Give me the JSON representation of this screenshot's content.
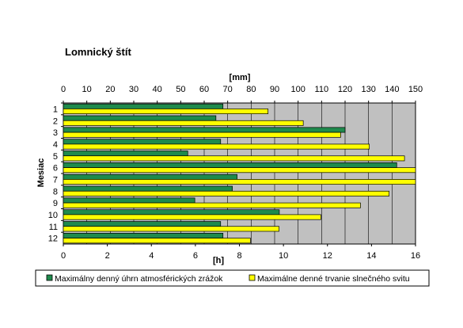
{
  "chart_data": {
    "type": "bar",
    "orientation": "horizontal",
    "title": "Lomnický štít",
    "ylabel": "Mesiac",
    "categories": [
      "1",
      "2",
      "3",
      "4",
      "5",
      "6",
      "7",
      "8",
      "9",
      "10",
      "11",
      "12"
    ],
    "top_axis": {
      "label": "[mm]",
      "range": [
        0,
        150
      ],
      "ticks": [
        "0",
        "10",
        "20",
        "30",
        "40",
        "50",
        "60",
        "70",
        "80",
        "90",
        "100",
        "110",
        "120",
        "130",
        "140",
        "150"
      ]
    },
    "bottom_axis": {
      "label": "[h]",
      "range": [
        0,
        16
      ],
      "ticks": [
        "0",
        "2",
        "4",
        "6",
        "8",
        "10",
        "12",
        "14",
        "16"
      ]
    },
    "series": [
      {
        "name": "Maximálny denný úhrn atmosférických zrážok",
        "axis": "top",
        "unit": "mm",
        "color": "#1f8a4c",
        "values": [
          68,
          65,
          120,
          67,
          53,
          142,
          74,
          72,
          56,
          92,
          67,
          68
        ]
      },
      {
        "name": "Maximálne denné trvanie slnečného svitu",
        "axis": "bottom",
        "unit": "h",
        "color": "#ffff00",
        "values": [
          9.3,
          10.9,
          12.6,
          13.9,
          15.5,
          16.0,
          16.0,
          14.8,
          13.5,
          11.7,
          9.8,
          8.5
        ]
      }
    ],
    "plot_background": "#c0c0c0",
    "grid": true,
    "legend_position": "bottom"
  }
}
